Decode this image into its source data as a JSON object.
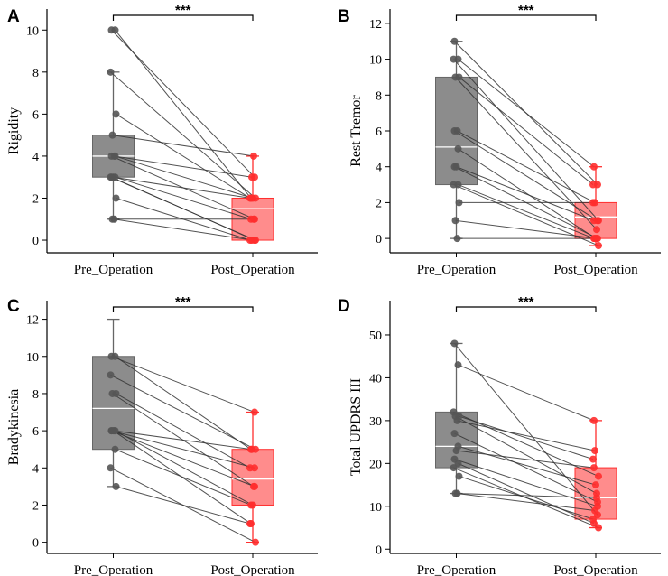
{
  "colors": {
    "pre": "#555555",
    "pre_box": "#8c8c8c",
    "post": "#ff2e2e",
    "post_box": "#ff8c8c",
    "line": "#333333"
  },
  "chart_data": [
    {
      "type": "box-paired",
      "panel": "A",
      "ylabel": "Rigidity",
      "categories": [
        "Pre_Operation",
        "Post_Operation"
      ],
      "ylim": [
        -0.6,
        11
      ],
      "yticks": [
        0,
        2,
        4,
        6,
        8,
        10
      ],
      "significance": "***",
      "boxes": [
        {
          "q1": 3,
          "median": 4,
          "q3": 5,
          "whisker_low": 1,
          "whisker_high": 8
        },
        {
          "q1": 0,
          "median": 1.5,
          "q3": 2,
          "whisker_low": 0,
          "whisker_high": 4
        }
      ],
      "pairs": [
        [
          10,
          3
        ],
        [
          10,
          2
        ],
        [
          8,
          2
        ],
        [
          6,
          2
        ],
        [
          5,
          4
        ],
        [
          4,
          3
        ],
        [
          4,
          1
        ],
        [
          4,
          2
        ],
        [
          3,
          2
        ],
        [
          3,
          0
        ],
        [
          3,
          1
        ],
        [
          3,
          0
        ],
        [
          2,
          0
        ],
        [
          1,
          1
        ],
        [
          1,
          0
        ]
      ]
    },
    {
      "type": "box-paired",
      "panel": "B",
      "ylabel": "Rest Tremor",
      "categories": [
        "Pre_Operation",
        "Post_Operation"
      ],
      "ylim": [
        -0.8,
        12.8
      ],
      "yticks": [
        0,
        2,
        4,
        6,
        8,
        10,
        12
      ],
      "significance": "***",
      "boxes": [
        {
          "q1": 3,
          "median": 5.1,
          "q3": 9,
          "whisker_low": 0,
          "whisker_high": 11
        },
        {
          "q1": 0,
          "median": 1.2,
          "q3": 2,
          "whisker_low": -0.4,
          "whisker_high": 4
        }
      ],
      "pairs": [
        [
          11,
          3
        ],
        [
          10,
          4
        ],
        [
          10,
          1
        ],
        [
          9,
          3
        ],
        [
          9,
          0.5
        ],
        [
          6,
          2
        ],
        [
          6,
          1
        ],
        [
          5,
          0
        ],
        [
          4,
          1
        ],
        [
          4,
          0
        ],
        [
          3,
          0
        ],
        [
          3,
          -0.4
        ],
        [
          2,
          2
        ],
        [
          1,
          0
        ],
        [
          0,
          0
        ]
      ]
    },
    {
      "type": "box-paired",
      "panel": "C",
      "ylabel": "Bradykinesia",
      "categories": [
        "Pre_Operation",
        "Post_Operation"
      ],
      "ylim": [
        -0.6,
        13
      ],
      "yticks": [
        0,
        2,
        4,
        6,
        8,
        10,
        12
      ],
      "significance": "***",
      "boxes": [
        {
          "q1": 5,
          "median": 7.2,
          "q3": 10,
          "whisker_low": 3,
          "whisker_high": 12
        },
        {
          "q1": 2,
          "median": 3.4,
          "q3": 5,
          "whisker_low": 0,
          "whisker_high": 7
        }
      ],
      "pairs": [
        [
          10,
          7
        ],
        [
          10,
          5
        ],
        [
          9,
          5
        ],
        [
          8,
          4
        ],
        [
          8,
          3
        ],
        [
          6,
          5
        ],
        [
          6,
          4
        ],
        [
          6,
          2
        ],
        [
          6,
          1
        ],
        [
          6,
          3
        ],
        [
          5,
          2
        ],
        [
          4,
          0
        ],
        [
          3,
          1
        ]
      ]
    },
    {
      "type": "box-paired",
      "panel": "D",
      "ylabel": "Total UPDRS III",
      "categories": [
        "Pre_Operation",
        "Post_Operation"
      ],
      "ylim": [
        -1,
        58
      ],
      "yticks": [
        0,
        10,
        20,
        30,
        40,
        50
      ],
      "significance": "***",
      "boxes": [
        {
          "q1": 19,
          "median": 24,
          "q3": 32,
          "whisker_low": 13,
          "whisker_high": 48
        },
        {
          "q1": 7,
          "median": 12,
          "q3": 19,
          "whisker_low": 5,
          "whisker_high": 30
        }
      ],
      "pairs": [
        [
          48,
          8
        ],
        [
          43,
          30
        ],
        [
          32,
          17
        ],
        [
          31,
          21
        ],
        [
          31,
          13
        ],
        [
          30,
          23
        ],
        [
          27,
          11
        ],
        [
          24,
          15
        ],
        [
          23,
          19
        ],
        [
          21,
          10
        ],
        [
          20,
          6
        ],
        [
          19,
          5
        ],
        [
          17,
          7
        ],
        [
          13,
          12
        ],
        [
          13,
          9
        ]
      ]
    }
  ]
}
